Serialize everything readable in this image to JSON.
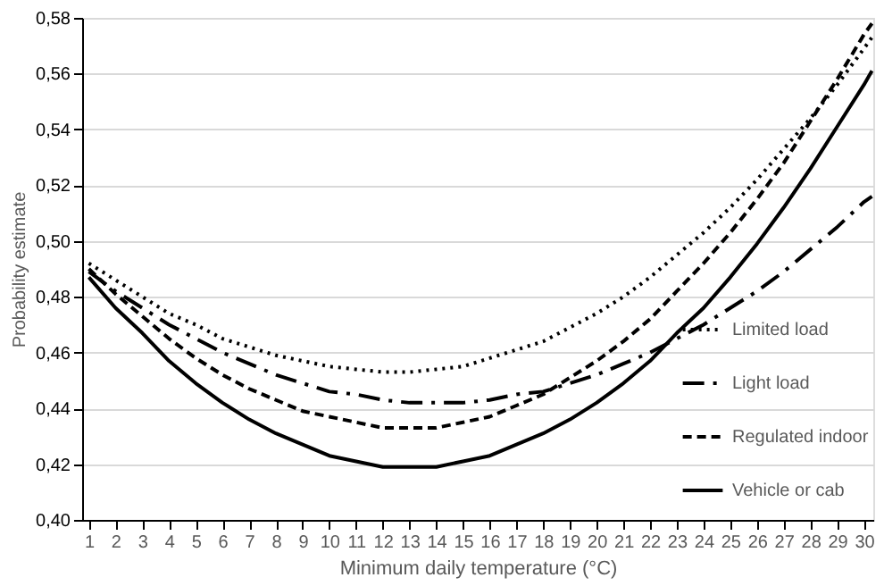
{
  "chart_data": {
    "type": "line",
    "xlabel": "Minimum daily temperature (°C)",
    "ylabel": "Probability estimate",
    "x": [
      1,
      2,
      3,
      4,
      5,
      6,
      7,
      8,
      9,
      10,
      11,
      12,
      13,
      14,
      15,
      16,
      17,
      18,
      19,
      20,
      21,
      22,
      23,
      24,
      25,
      26,
      27,
      28,
      29,
      30,
      30.3
    ],
    "series": [
      {
        "name": "Limited load",
        "color": "#000000",
        "line_style": "dotted",
        "values": [
          0.492,
          0.486,
          0.48,
          0.474,
          0.47,
          0.465,
          0.462,
          0.459,
          0.457,
          0.455,
          0.454,
          0.453,
          0.453,
          0.454,
          0.455,
          0.458,
          0.461,
          0.464,
          0.469,
          0.474,
          0.48,
          0.487,
          0.495,
          0.503,
          0.512,
          0.522,
          0.533,
          0.544,
          0.556,
          0.569,
          0.573
        ]
      },
      {
        "name": "Light load",
        "color": "#000000",
        "line_style": "dashdot",
        "values": [
          0.489,
          0.482,
          0.476,
          0.47,
          0.465,
          0.46,
          0.456,
          0.452,
          0.449,
          0.446,
          0.445,
          0.443,
          0.442,
          0.442,
          0.442,
          0.443,
          0.445,
          0.446,
          0.449,
          0.452,
          0.456,
          0.46,
          0.465,
          0.47,
          0.476,
          0.482,
          0.489,
          0.497,
          0.505,
          0.514,
          0.516
        ]
      },
      {
        "name": "Regulated indoor",
        "color": "#000000",
        "line_style": "dashed",
        "values": [
          0.49,
          0.481,
          0.473,
          0.465,
          0.458,
          0.452,
          0.447,
          0.443,
          0.439,
          0.437,
          0.435,
          0.433,
          0.433,
          0.433,
          0.435,
          0.437,
          0.441,
          0.445,
          0.451,
          0.457,
          0.464,
          0.472,
          0.482,
          0.492,
          0.503,
          0.515,
          0.528,
          0.543,
          0.558,
          0.574,
          0.578
        ]
      },
      {
        "name": "Vehicle or cab",
        "color": "#000000",
        "line_style": "solid",
        "values": [
          0.487,
          0.476,
          0.467,
          0.457,
          0.449,
          0.442,
          0.436,
          0.431,
          0.427,
          0.423,
          0.421,
          0.419,
          0.419,
          0.419,
          0.421,
          0.423,
          0.427,
          0.431,
          0.436,
          0.442,
          0.449,
          0.457,
          0.467,
          0.476,
          0.487,
          0.499,
          0.512,
          0.526,
          0.541,
          0.556,
          0.561
        ]
      }
    ],
    "xlim": [
      0.75,
      30.35
    ],
    "xticks": [
      1,
      2,
      3,
      4,
      5,
      6,
      7,
      8,
      9,
      10,
      11,
      12,
      13,
      14,
      15,
      16,
      17,
      18,
      19,
      20,
      21,
      22,
      23,
      24,
      25,
      26,
      27,
      28,
      29,
      30
    ],
    "ylim": [
      0.4,
      0.58
    ],
    "yticks": [
      {
        "value": 0.4,
        "label": "0,40"
      },
      {
        "value": 0.42,
        "label": "0,42"
      },
      {
        "value": 0.44,
        "label": "0,44"
      },
      {
        "value": 0.46,
        "label": "0,46"
      },
      {
        "value": 0.48,
        "label": "0,48"
      },
      {
        "value": 0.5,
        "label": "0,50"
      },
      {
        "value": 0.52,
        "label": "0,52"
      },
      {
        "value": 0.54,
        "label": "0,54"
      },
      {
        "value": 0.56,
        "label": "0,56"
      },
      {
        "value": 0.58,
        "label": "0,58"
      }
    ],
    "grid": "y",
    "legend": "right",
    "marker": "none"
  }
}
